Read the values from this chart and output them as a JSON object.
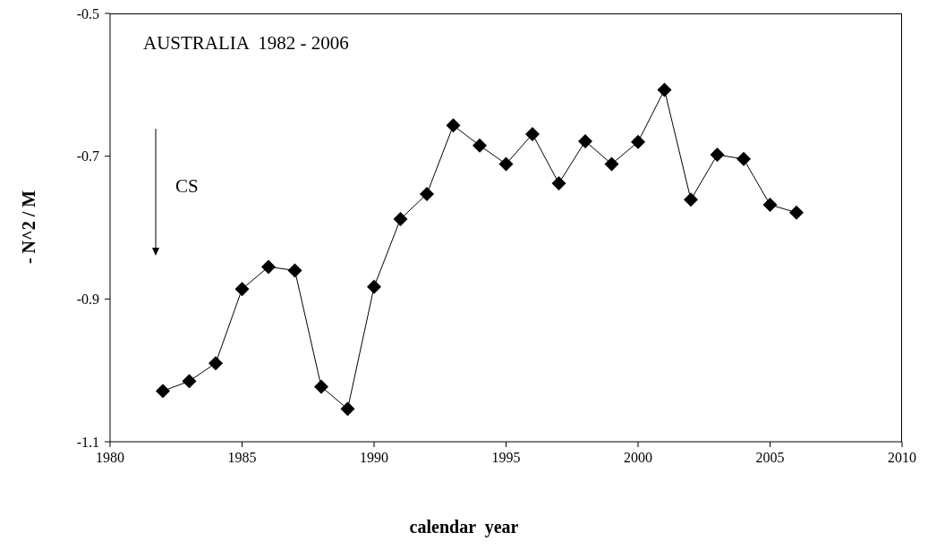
{
  "chart_data": {
    "type": "line",
    "xlabel": "calendar  year",
    "ylabel": "- N^2 / M",
    "annotations": [
      "AUSTRALIA  1982 - 2006",
      "CS"
    ],
    "x": [
      1982,
      1983,
      1984,
      1985,
      1986,
      1987,
      1988,
      1989,
      1990,
      1991,
      1992,
      1993,
      1994,
      1995,
      1996,
      1997,
      1998,
      1999,
      2000,
      2001,
      2002,
      2003,
      2004,
      2005,
      2006
    ],
    "series": [
      {
        "color": "#000000",
        "values": [
          -1.029,
          -1.015,
          -0.99,
          -0.886,
          -0.855,
          -0.86,
          -1.023,
          -1.054,
          -0.883,
          -0.788,
          -0.753,
          -0.657,
          -0.685,
          -0.711,
          -0.669,
          -0.738,
          -0.679,
          -0.711,
          -0.68,
          -0.607,
          -0.761,
          -0.698,
          -0.704,
          -0.768,
          -0.779
        ]
      }
    ],
    "xlim": [
      1980,
      2010
    ],
    "xticks": [
      1980,
      1985,
      1990,
      1995,
      2000,
      2005,
      2010
    ],
    "ylim": [
      -1.1,
      -0.5
    ],
    "yticks": [
      -1.1,
      -0.9,
      -0.7,
      -0.5
    ],
    "grid": false,
    "marker": "diamond",
    "line_style": "solid"
  }
}
